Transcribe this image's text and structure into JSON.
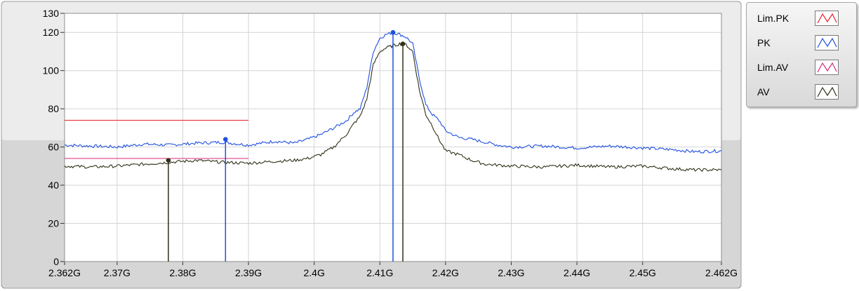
{
  "chart_data": {
    "type": "line",
    "xlim": [
      2.362,
      2.462
    ],
    "ylim": [
      0,
      130
    ],
    "x_ticks": [
      {
        "value": 2.362,
        "label": "2.362G"
      },
      {
        "value": 2.37,
        "label": "2.37G"
      },
      {
        "value": 2.38,
        "label": "2.38G"
      },
      {
        "value": 2.39,
        "label": "2.39G"
      },
      {
        "value": 2.4,
        "label": "2.4G"
      },
      {
        "value": 2.41,
        "label": "2.41G"
      },
      {
        "value": 2.42,
        "label": "2.42G"
      },
      {
        "value": 2.43,
        "label": "2.43G"
      },
      {
        "value": 2.44,
        "label": "2.44G"
      },
      {
        "value": 2.45,
        "label": "2.45G"
      },
      {
        "value": 2.462,
        "label": "2.462G"
      }
    ],
    "y_ticks": [
      {
        "value": 0,
        "label": "0"
      },
      {
        "value": 20,
        "label": "20"
      },
      {
        "value": 40,
        "label": "40"
      },
      {
        "value": 60,
        "label": "60"
      },
      {
        "value": 80,
        "label": "80"
      },
      {
        "value": 100,
        "label": "100"
      },
      {
        "value": 120,
        "label": "120"
      },
      {
        "value": 130,
        "label": "130"
      }
    ],
    "grid": true,
    "legend_position": "right",
    "series": [
      {
        "name": "Lim.PK",
        "color": "#e8202a",
        "x": [
          2.362,
          2.39
        ],
        "y": [
          74,
          74
        ]
      },
      {
        "name": "PK",
        "color": "#1f4fe0",
        "x": [
          2.362,
          2.366,
          2.37,
          2.374,
          2.378,
          2.382,
          2.386,
          2.39,
          2.394,
          2.397,
          2.399,
          2.401,
          2.403,
          2.405,
          2.406,
          2.407,
          2.408,
          2.409,
          2.41,
          2.411,
          2.412,
          2.413,
          2.414,
          2.415,
          2.416,
          2.417,
          2.418,
          2.419,
          2.42,
          2.422,
          2.424,
          2.426,
          2.428,
          2.43,
          2.435,
          2.44,
          2.445,
          2.45,
          2.455,
          2.458,
          2.462
        ],
        "y": [
          61,
          60.5,
          60,
          61.5,
          61,
          62,
          62.5,
          61,
          63,
          62,
          64,
          66.5,
          70,
          74,
          78,
          80,
          91,
          110,
          117,
          119,
          120,
          119,
          117.5,
          114,
          96,
          82,
          77,
          74,
          68.5,
          65,
          64,
          62.5,
          61,
          60,
          60.5,
          59.5,
          60.5,
          59.5,
          58.5,
          57.5,
          58
        ]
      },
      {
        "name": "Lim.AV",
        "color": "#d8287a",
        "x": [
          2.362,
          2.39
        ],
        "y": [
          54,
          54
        ]
      },
      {
        "name": "AV",
        "color": "#303018",
        "x": [
          2.362,
          2.366,
          2.37,
          2.374,
          2.378,
          2.382,
          2.386,
          2.39,
          2.394,
          2.397,
          2.399,
          2.401,
          2.403,
          2.405,
          2.406,
          2.407,
          2.408,
          2.409,
          2.41,
          2.411,
          2.412,
          2.413,
          2.414,
          2.415,
          2.416,
          2.417,
          2.418,
          2.419,
          2.42,
          2.422,
          2.424,
          2.426,
          2.428,
          2.43,
          2.435,
          2.44,
          2.445,
          2.45,
          2.455,
          2.458,
          2.462
        ],
        "y": [
          50,
          49.5,
          50,
          51,
          52,
          53,
          52,
          51.5,
          52.5,
          53,
          54,
          56,
          60,
          67,
          72,
          76,
          85,
          103,
          110,
          112,
          113,
          114,
          113.5,
          110,
          90,
          77,
          71,
          64,
          58,
          56,
          53,
          51,
          50.5,
          50,
          49.5,
          50.5,
          49.5,
          50,
          48.5,
          48,
          48
        ]
      }
    ],
    "markers": [
      {
        "series": "PK",
        "x": 2.3865,
        "y": 64
      },
      {
        "series": "AV",
        "x": 2.3778,
        "y": 53
      },
      {
        "series": "PK",
        "x": 2.412,
        "y": 120
      },
      {
        "series": "AV",
        "x": 2.4135,
        "y": 114
      }
    ]
  },
  "legend": {
    "items": [
      {
        "label": "Lim.PK",
        "color": "#e8202a"
      },
      {
        "label": "PK",
        "color": "#1f4fe0"
      },
      {
        "label": "Lim.AV",
        "color": "#d8287a"
      },
      {
        "label": "AV",
        "color": "#303018"
      }
    ]
  }
}
